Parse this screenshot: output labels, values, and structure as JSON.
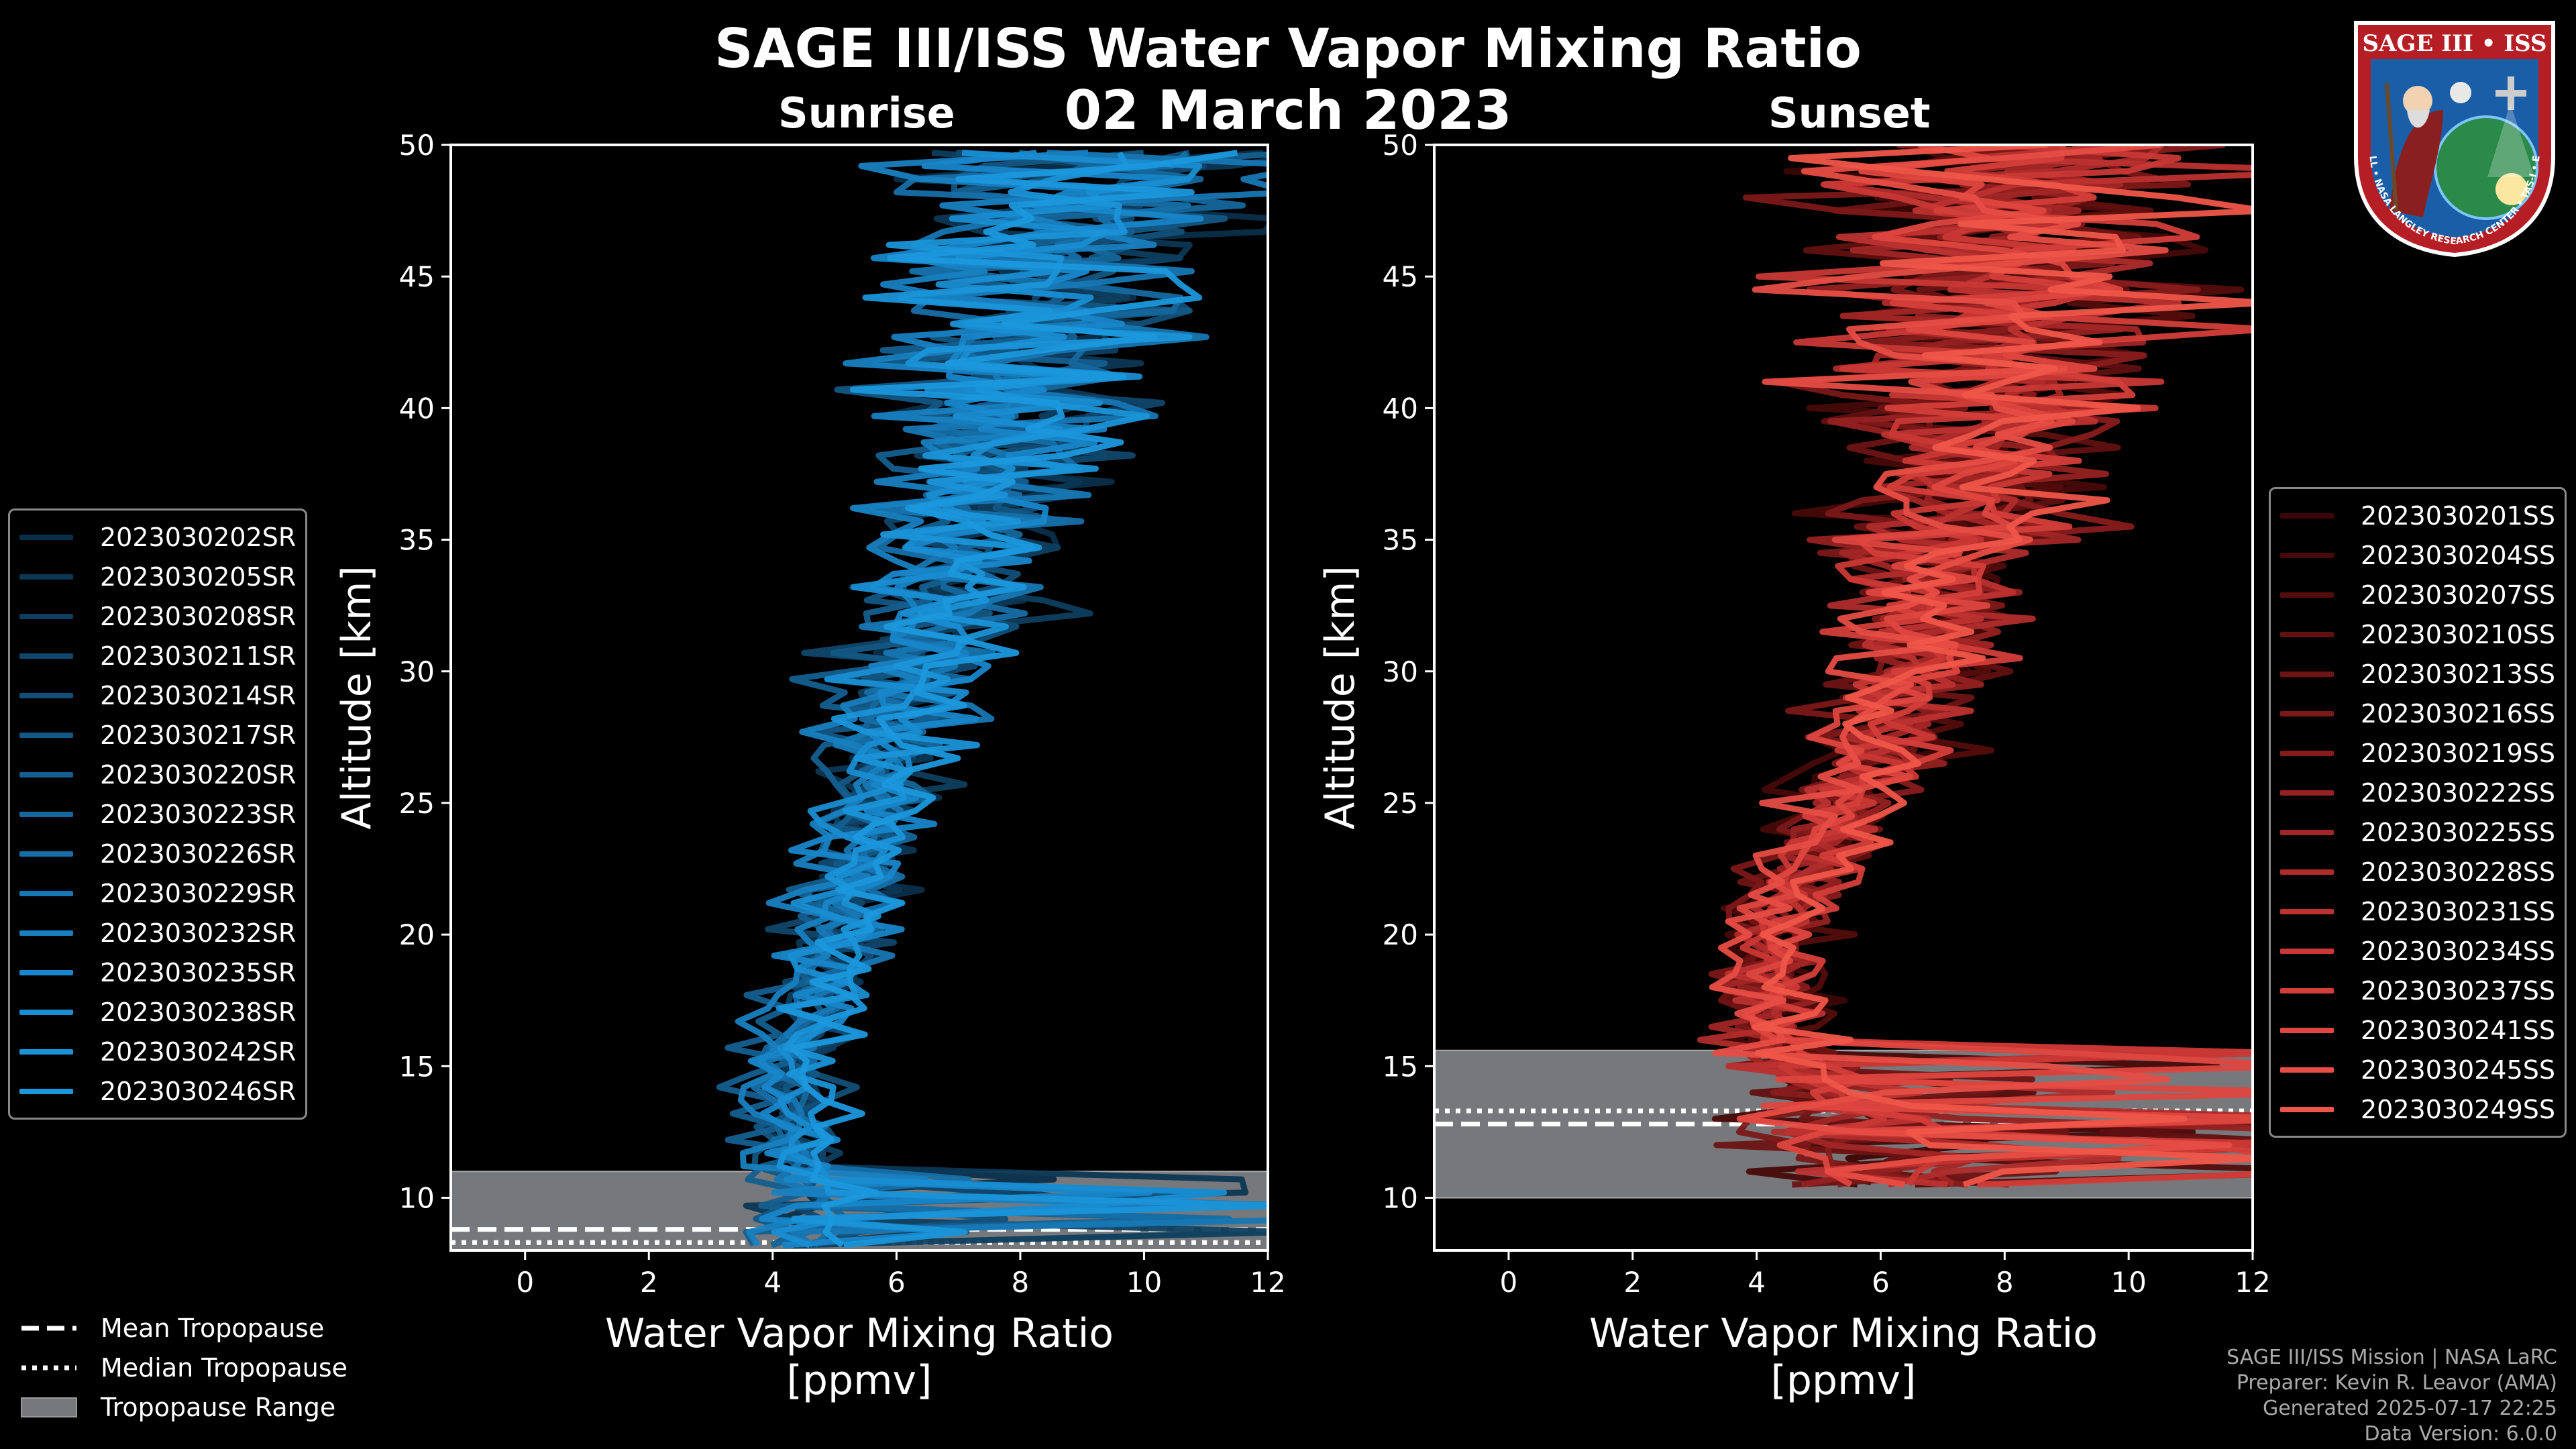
{
  "title": "SAGE III/ISS Water Vapor Mixing Ratio",
  "date": "02 March 2023",
  "logo": {
    "text_top": "SAGE III • ISS",
    "text_ring": "BALL • NASA LANGLEY RESEARCH CENTER • TAS-I • ESA"
  },
  "credits": {
    "mission": "SAGE III/ISS Mission | NASA LaRC",
    "preparer": "Preparer: Kevin R. Leavor (AMA)",
    "generated": "Generated 2025-07-17 22:25",
    "version": "Data Version: 6.0.0"
  },
  "legend_bottom": {
    "mean": "Mean Tropopause",
    "median": "Median Tropopause",
    "range": "Tropopause Range"
  },
  "chart_data": [
    {
      "type": "line",
      "panel": "sunrise",
      "title": "Sunrise",
      "xlabel": "Water Vapor Mixing Ratio\n[ppmv]",
      "xlabel_line1": "Water Vapor Mixing Ratio",
      "xlabel_line2": "[ppmv]",
      "ylabel": "Altitude [km]",
      "xlim": [
        -1.2,
        12
      ],
      "ylim": [
        8,
        50
      ],
      "xticks": [
        0,
        2,
        4,
        6,
        8,
        10,
        12
      ],
      "yticks": [
        10,
        15,
        20,
        25,
        30,
        35,
        40,
        45,
        50
      ],
      "tropopause": {
        "mean": 8.8,
        "median": 8.3,
        "range": [
          8.0,
          11.0
        ]
      },
      "profile_shape": {
        "alt": [
          12,
          15,
          20,
          25,
          30,
          35,
          40,
          45,
          50
        ],
        "center": [
          4.3,
          4.2,
          5.0,
          5.5,
          6.2,
          7.0,
          7.8,
          8.3,
          8.8
        ],
        "spread": [
          0.9,
          0.8,
          1.1,
          1.3,
          1.7,
          2.2,
          3.0,
          4.0,
          4.5
        ]
      },
      "series": [
        {
          "name": "2023030202SR",
          "color": "#0a2f4a"
        },
        {
          "name": "2023030205SR",
          "color": "#0c3754"
        },
        {
          "name": "2023030208SR",
          "color": "#0e3f60"
        },
        {
          "name": "2023030211SR",
          "color": "#10476c"
        },
        {
          "name": "2023030214SR",
          "color": "#124f78"
        },
        {
          "name": "2023030217SR",
          "color": "#135784"
        },
        {
          "name": "2023030220SR",
          "color": "#145f90"
        },
        {
          "name": "2023030223SR",
          "color": "#15679c"
        },
        {
          "name": "2023030226SR",
          "color": "#166fa8"
        },
        {
          "name": "2023030229SR",
          "color": "#1777b4"
        },
        {
          "name": "2023030232SR",
          "color": "#187fc0"
        },
        {
          "name": "2023030235SR",
          "color": "#1886ca"
        },
        {
          "name": "2023030238SR",
          "color": "#198dd2"
        },
        {
          "name": "2023030242SR",
          "color": "#1a93d8"
        },
        {
          "name": "2023030246SR",
          "color": "#1b98dd"
        }
      ]
    },
    {
      "type": "line",
      "panel": "sunset",
      "title": "Sunset",
      "xlabel": "Water Vapor Mixing Ratio\n[ppmv]",
      "xlabel_line1": "Water Vapor Mixing Ratio",
      "xlabel_line2": "[ppmv]",
      "ylabel": "Altitude [km]",
      "xlim": [
        -1.2,
        12
      ],
      "ylim": [
        8,
        50
      ],
      "xticks": [
        0,
        2,
        4,
        6,
        8,
        10,
        12
      ],
      "yticks": [
        10,
        15,
        20,
        25,
        30,
        35,
        40,
        45,
        50
      ],
      "tropopause": {
        "mean": 12.8,
        "median": 13.3,
        "range": [
          10.0,
          15.6
        ]
      },
      "profile_shape": {
        "alt": [
          12,
          15,
          20,
          25,
          30,
          35,
          40,
          45,
          50
        ],
        "center": [
          6.0,
          4.5,
          4.2,
          5.5,
          6.5,
          7.2,
          7.8,
          8.2,
          8.6
        ],
        "spread": [
          3.0,
          1.2,
          1.1,
          1.4,
          1.8,
          2.4,
          3.2,
          4.2,
          4.6
        ]
      },
      "series": [
        {
          "name": "2023030201SS",
          "color": "#3c0606"
        },
        {
          "name": "2023030204SS",
          "color": "#470909"
        },
        {
          "name": "2023030207SS",
          "color": "#540c0c"
        },
        {
          "name": "2023030210SS",
          "color": "#611010"
        },
        {
          "name": "2023030213SS",
          "color": "#6e1414"
        },
        {
          "name": "2023030216SS",
          "color": "#7b1818"
        },
        {
          "name": "2023030219SS",
          "color": "#881c1c"
        },
        {
          "name": "2023030222SS",
          "color": "#952121"
        },
        {
          "name": "2023030225SS",
          "color": "#a22626"
        },
        {
          "name": "2023030228SS",
          "color": "#af2c2b"
        },
        {
          "name": "2023030231SS",
          "color": "#bc3230"
        },
        {
          "name": "2023030234SS",
          "color": "#c93835"
        },
        {
          "name": "2023030237SS",
          "color": "#d43e3a"
        },
        {
          "name": "2023030241SS",
          "color": "#de463f"
        },
        {
          "name": "2023030245SS",
          "color": "#e64d44"
        },
        {
          "name": "2023030249SS",
          "color": "#ef5649"
        }
      ]
    }
  ]
}
